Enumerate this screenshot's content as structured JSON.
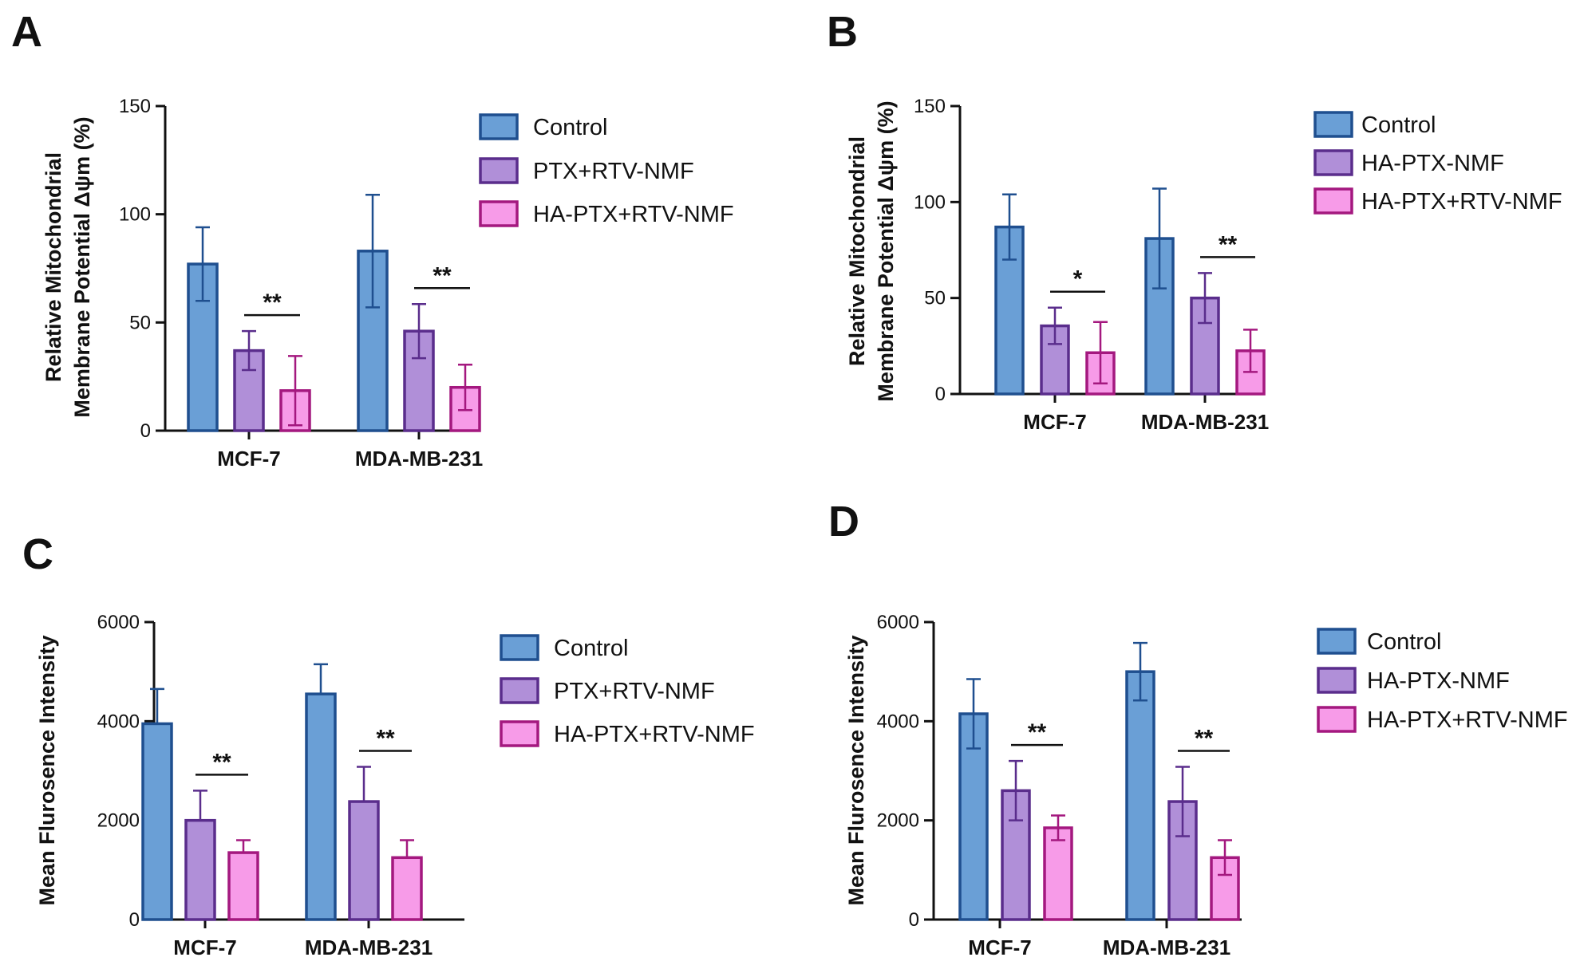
{
  "colors": {
    "control_fill": "#6a9fd6",
    "control_stroke": "#1f4f8f",
    "ptx_fill": "#b08fd8",
    "ptx_stroke": "#5a2d8c",
    "ha_fill": "#f79be8",
    "ha_stroke": "#a4187f",
    "axis": "#111111"
  },
  "chart_data": [
    {
      "id": "A",
      "type": "bar",
      "panel_label": "A",
      "ylabel_lines": [
        "Relative Mitochondrial",
        "Membrane Potential Δψm (%)"
      ],
      "ylim": [
        0,
        150
      ],
      "yticks": [
        0,
        50,
        100,
        150
      ],
      "categories": [
        "MCF-7",
        "MDA-MB-231"
      ],
      "legend_position": "right",
      "series": [
        {
          "name": "Control",
          "values": [
            77,
            83
          ],
          "errors": [
            17,
            26
          ],
          "error_style": "both"
        },
        {
          "name": "PTX+RTV-NMF",
          "values": [
            37,
            46
          ],
          "errors": [
            9,
            12.5
          ],
          "error_style": "both"
        },
        {
          "name": "HA-PTX+RTV-NMF",
          "values": [
            18.5,
            20
          ],
          "errors": [
            16,
            10.5
          ],
          "error_style": "both"
        }
      ],
      "significance": [
        {
          "category": "MCF-7",
          "from_series": 1,
          "to_series": 2,
          "label": "**"
        },
        {
          "category": "MDA-MB-231",
          "from_series": 1,
          "to_series": 2,
          "label": "**"
        }
      ]
    },
    {
      "id": "B",
      "type": "bar",
      "panel_label": "B",
      "ylabel_lines": [
        "Relative Mitochondrial",
        "Membrane Potential  Δψm (%)"
      ],
      "ylim": [
        0,
        150
      ],
      "yticks": [
        0,
        50,
        100,
        150
      ],
      "categories": [
        "MCF-7",
        "MDA-MB-231"
      ],
      "legend_position": "right",
      "series": [
        {
          "name": "Control",
          "values": [
            87,
            81
          ],
          "errors": [
            17,
            26
          ],
          "error_style": "both"
        },
        {
          "name": "HA-PTX-NMF",
          "values": [
            35.5,
            50
          ],
          "errors": [
            9.5,
            13
          ],
          "error_style": "both"
        },
        {
          "name": "HA-PTX+RTV-NMF",
          "values": [
            21.5,
            22.5
          ],
          "errors": [
            16,
            11
          ],
          "error_style": "both"
        }
      ],
      "significance": [
        {
          "category": "MCF-7",
          "from_series": 1,
          "to_series": 2,
          "label": "*"
        },
        {
          "category": "MDA-MB-231",
          "from_series": 1,
          "to_series": 2,
          "label": "**"
        }
      ]
    },
    {
      "id": "C",
      "type": "bar",
      "panel_label": "C",
      "ylabel_lines": [
        "Mean Flurosence  Intensity"
      ],
      "ylim": [
        0,
        6000
      ],
      "yticks": [
        0,
        2000,
        4000,
        6000
      ],
      "categories": [
        "MCF-7",
        "MDA-MB-231"
      ],
      "legend_position": "right",
      "series": [
        {
          "name": "Control",
          "values": [
            3950,
            4550
          ],
          "errors": [
            700,
            600
          ],
          "error_style": "up"
        },
        {
          "name": "PTX+RTV-NMF",
          "values": [
            2000,
            2380
          ],
          "errors": [
            600,
            700
          ],
          "error_style": "up"
        },
        {
          "name": "HA-PTX+RTV-NMF",
          "values": [
            1350,
            1250
          ],
          "errors": [
            250,
            350
          ],
          "error_style": "up"
        }
      ],
      "significance": [
        {
          "category": "MCF-7",
          "from_series": 1,
          "to_series": 2,
          "label": "**"
        },
        {
          "category": "MDA-MB-231",
          "from_series": 1,
          "to_series": 2,
          "label": "**"
        }
      ]
    },
    {
      "id": "D",
      "type": "bar",
      "panel_label": "D",
      "ylabel_lines": [
        "Mean Flurosence  Intensity"
      ],
      "ylim": [
        0,
        6000
      ],
      "yticks": [
        0,
        2000,
        4000,
        6000
      ],
      "categories": [
        "MCF-7",
        "MDA-MB-231"
      ],
      "legend_position": "right",
      "series": [
        {
          "name": "Control",
          "values": [
            4150,
            5000
          ],
          "errors": [
            700,
            580
          ],
          "error_style": "both"
        },
        {
          "name": "HA-PTX-NMF",
          "values": [
            2600,
            2380
          ],
          "errors": [
            600,
            700
          ],
          "error_style": "both"
        },
        {
          "name": "HA-PTX+RTV-NMF",
          "values": [
            1850,
            1250
          ],
          "errors": [
            250,
            350
          ],
          "error_style": "both"
        }
      ],
      "significance": [
        {
          "category": "MCF-7",
          "from_series": 1,
          "to_series": 2,
          "label": "**"
        },
        {
          "category": "MDA-MB-231",
          "from_series": 1,
          "to_series": 2,
          "label": "**"
        }
      ]
    }
  ]
}
